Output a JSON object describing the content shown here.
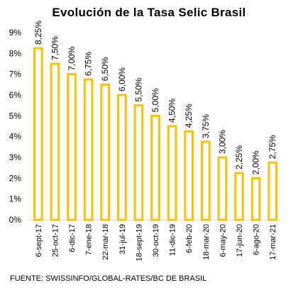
{
  "chart_data": {
    "type": "bar",
    "title": "Evolución de la Tasa Selic Brasil",
    "source": "FUENTE: SWISSINFO/GLOBAL-RATES/BC  DE BRASIL",
    "categories": [
      "6-sept-17",
      "25-oct-17",
      "6-dic-17",
      "7-ene-18",
      "22-mar-18",
      "31-jul-19",
      "18-sept-19",
      "30-oct-19",
      "11-dic-19",
      "6-feb-20",
      "18-mar-20",
      "6-may-20",
      "17-jun-20",
      "6-ago-20",
      "17-mar-21"
    ],
    "values": [
      8.25,
      7.5,
      7.0,
      6.75,
      6.5,
      6.0,
      5.5,
      5.0,
      4.5,
      4.25,
      3.75,
      3.0,
      2.25,
      2.0,
      2.75
    ],
    "data_labels": [
      "8,25%",
      "7,50%",
      "7,00%",
      "6,75%",
      "6,50%",
      "6,00%",
      "5,50%",
      "5,00%",
      "4,50%",
      "4,25%",
      "3,75%",
      "3,00%",
      "2,25%",
      "2,00%",
      "2,75%"
    ],
    "y_ticks": [
      0,
      1,
      2,
      3,
      4,
      5,
      6,
      7,
      8,
      9
    ],
    "y_tick_labels": [
      "0%",
      "1%",
      "2%",
      "3%",
      "4%",
      "5%",
      "6%",
      "7%",
      "8%",
      "9%"
    ],
    "ylim": [
      0,
      9
    ],
    "xlabel": "",
    "ylabel": "",
    "grid": false,
    "bar_color": "#FFC000",
    "bar_fill": "#ffffff"
  }
}
